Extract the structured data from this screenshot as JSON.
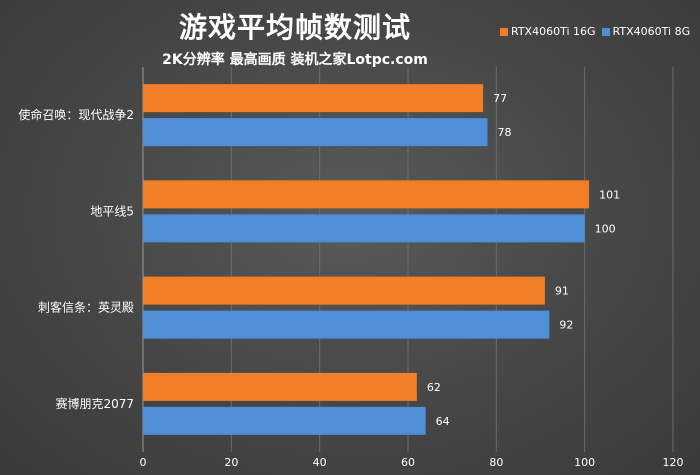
{
  "chart_data": {
    "type": "bar",
    "orientation": "horizontal",
    "title": "游戏平均帧数测试",
    "subtitle": "2K分辨率  最高画质  装机之家Lotpc.com",
    "categories": [
      "使命召唤：现代战争2",
      "地平线5",
      "刺客信条：英灵殿",
      "赛博朋克2077"
    ],
    "series": [
      {
        "name": "RTX4060Ti 16G",
        "color": "#f07f28",
        "values": [
          77,
          101,
          91,
          62
        ]
      },
      {
        "name": "RTX4060Ti 8G",
        "color": "#4f8fd8",
        "values": [
          78,
          100,
          92,
          64
        ]
      }
    ],
    "xlim": [
      0,
      120
    ],
    "xticks": [
      "0",
      "20",
      "40",
      "60",
      "80",
      "100",
      "120"
    ],
    "grid": true,
    "legend_position": "top-right"
  }
}
